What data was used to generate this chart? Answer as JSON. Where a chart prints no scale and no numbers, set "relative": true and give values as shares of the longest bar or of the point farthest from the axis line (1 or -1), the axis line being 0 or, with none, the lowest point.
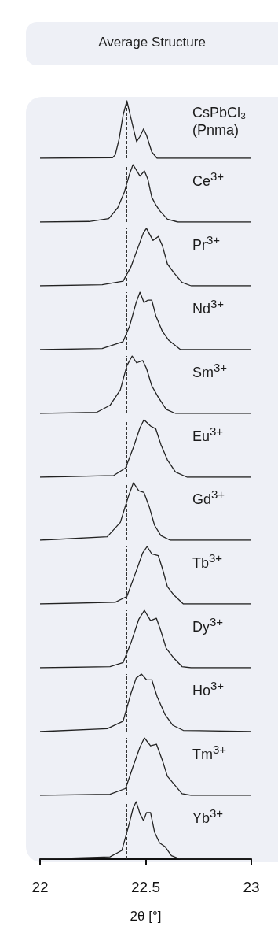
{
  "chart_data": [
    {
      "type": "line",
      "relative": true,
      "title": "Average Structure",
      "xlim": [
        22,
        23
      ],
      "tick_labels": false,
      "marker": "none",
      "ref_lines": [
        {
          "axis": "x",
          "value": 22.41,
          "line_style": "dashed",
          "color": "#333333"
        }
      ],
      "x": [
        22.0,
        22.343,
        22.356,
        22.374,
        22.393,
        22.411,
        22.43,
        22.457,
        22.473,
        22.49,
        22.504,
        22.529,
        22.554,
        23.0
      ],
      "series": [
        {
          "name": "CsPbCl₃ (Pnma)",
          "color": "#222222",
          "values": [
            0,
            0.01,
            0.06,
            0.33,
            0.75,
            1,
            0.7,
            0.29,
            0.38,
            0.51,
            0.4,
            0.11,
            0,
            0
          ]
        }
      ]
    },
    {
      "type": "line",
      "relative": true,
      "xlim": [
        22,
        23
      ],
      "tick_labels": false,
      "marker": "none",
      "ref_lines": [
        {
          "axis": "x",
          "value": 22.41,
          "line_style": "dashed",
          "color": "#333333"
        }
      ],
      "x": [
        22.0,
        22.232,
        22.325,
        22.368,
        22.399,
        22.424,
        22.44,
        22.455,
        22.473,
        22.494,
        22.51,
        22.529,
        22.548,
        22.566,
        22.603,
        22.653,
        23.0
      ],
      "series": [
        {
          "name": "Ce$^{3+}$",
          "color": "#222222",
          "values": [
            0,
            0.01,
            0.06,
            0.25,
            0.52,
            0.84,
            1,
            0.91,
            0.8,
            0.89,
            0.75,
            0.43,
            0.3,
            0.2,
            0.05,
            0,
            0
          ]
        }
      ]
    },
    {
      "type": "line",
      "relative": true,
      "xlim": [
        22,
        23
      ],
      "tick_labels": false,
      "marker": "none",
      "ref_lines": [
        {
          "axis": "x",
          "value": 22.41,
          "line_style": "dashed",
          "color": "#333333"
        }
      ],
      "x": [
        22.0,
        22.294,
        22.393,
        22.43,
        22.467,
        22.49,
        22.504,
        22.517,
        22.535,
        22.56,
        22.579,
        22.603,
        22.635,
        22.672,
        22.715,
        23.0
      ],
      "series": [
        {
          "name": "Pr$^{3+}$",
          "color": "#222222",
          "values": [
            0,
            0.02,
            0.08,
            0.33,
            0.7,
            0.93,
            1,
            0.91,
            0.79,
            0.86,
            0.7,
            0.38,
            0.22,
            0.06,
            0,
            0
          ]
        }
      ]
    },
    {
      "type": "line",
      "relative": true,
      "xlim": [
        22,
        23
      ],
      "tick_labels": false,
      "marker": "none",
      "ref_lines": [
        {
          "axis": "x",
          "value": 22.41,
          "line_style": "dashed",
          "color": "#333333"
        }
      ],
      "x": [
        22.0,
        22.294,
        22.393,
        22.424,
        22.455,
        22.473,
        22.492,
        22.51,
        22.529,
        22.548,
        22.579,
        22.61,
        22.665,
        23.0
      ],
      "series": [
        {
          "name": "Nd$^{3+}$",
          "color": "#222222",
          "values": [
            0,
            0.02,
            0.14,
            0.41,
            0.82,
            1,
            0.82,
            0.86,
            0.86,
            0.59,
            0.32,
            0.16,
            0,
            0
          ]
        }
      ]
    },
    {
      "type": "line",
      "relative": true,
      "xlim": [
        22,
        23
      ],
      "tick_labels": false,
      "marker": "none",
      "ref_lines": [
        {
          "axis": "x",
          "value": 22.41,
          "line_style": "dashed",
          "color": "#333333"
        }
      ],
      "x": [
        22.0,
        22.269,
        22.331,
        22.38,
        22.411,
        22.436,
        22.457,
        22.486,
        22.504,
        22.529,
        22.56,
        22.597,
        22.641,
        23.0
      ],
      "series": [
        {
          "name": "Sm$^{3+}$",
          "color": "#222222",
          "values": [
            0,
            0.02,
            0.14,
            0.41,
            0.83,
            1,
            0.88,
            0.92,
            0.78,
            0.48,
            0.28,
            0.07,
            0,
            0
          ]
        }
      ]
    },
    {
      "type": "line",
      "relative": true,
      "xlim": [
        22,
        23
      ],
      "tick_labels": false,
      "marker": "none",
      "ref_lines": [
        {
          "axis": "x",
          "value": 22.41,
          "line_style": "dashed",
          "color": "#333333"
        }
      ],
      "x": [
        22.0,
        22.349,
        22.405,
        22.442,
        22.473,
        22.492,
        22.523,
        22.548,
        22.572,
        22.603,
        22.641,
        22.696,
        23.0
      ],
      "series": [
        {
          "name": "Eu$^{3+}$",
          "color": "#222222",
          "values": [
            0,
            0.03,
            0.16,
            0.52,
            0.86,
            1,
            0.89,
            0.84,
            0.57,
            0.3,
            0.09,
            0,
            0
          ]
        }
      ]
    },
    {
      "type": "line",
      "relative": true,
      "xlim": [
        22,
        23
      ],
      "tick_labels": false,
      "marker": "none",
      "ref_lines": [
        {
          "axis": "x",
          "value": 22.41,
          "line_style": "dashed",
          "color": "#333333"
        }
      ],
      "x": [
        22.0,
        22.318,
        22.38,
        22.418,
        22.442,
        22.467,
        22.492,
        22.517,
        22.542,
        22.572,
        22.616,
        23.0
      ],
      "series": [
        {
          "name": "Gd$^{3+}$",
          "color": "#222222",
          "values": [
            0,
            0.06,
            0.31,
            0.76,
            1,
            0.86,
            0.83,
            0.58,
            0.26,
            0.08,
            0,
            0
          ]
        }
      ]
    },
    {
      "type": "line",
      "relative": true,
      "xlim": [
        22,
        23
      ],
      "tick_labels": false,
      "marker": "none",
      "ref_lines": [
        {
          "axis": "x",
          "value": 22.41,
          "line_style": "dashed",
          "color": "#333333"
        }
      ],
      "x": [
        22.0,
        22.356,
        22.411,
        22.455,
        22.486,
        22.507,
        22.529,
        22.56,
        22.579,
        22.603,
        22.635,
        22.678,
        23.0
      ],
      "series": [
        {
          "name": "Tb$^{3+}$",
          "color": "#222222",
          "values": [
            0,
            0.03,
            0.13,
            0.57,
            0.89,
            1,
            0.87,
            0.84,
            0.62,
            0.3,
            0.15,
            0,
            0
          ]
        }
      ]
    },
    {
      "type": "line",
      "relative": true,
      "xlim": [
        22,
        23
      ],
      "tick_labels": false,
      "marker": "none",
      "ref_lines": [
        {
          "axis": "x",
          "value": 22.41,
          "line_style": "dashed",
          "color": "#333333"
        }
      ],
      "x": [
        22.0,
        22.331,
        22.393,
        22.43,
        22.467,
        22.494,
        22.523,
        22.551,
        22.572,
        22.597,
        22.635,
        22.672,
        22.715,
        23.0
      ],
      "series": [
        {
          "name": "Dy$^{3+}$",
          "color": "#222222",
          "values": [
            0,
            0.02,
            0.09,
            0.43,
            0.84,
            1,
            0.82,
            0.86,
            0.64,
            0.34,
            0.16,
            0.02,
            0,
            0
          ]
        }
      ]
    },
    {
      "type": "line",
      "relative": true,
      "xlim": [
        22,
        23
      ],
      "tick_labels": false,
      "marker": "none",
      "ref_lines": [
        {
          "axis": "x",
          "value": 22.41,
          "line_style": "dashed",
          "color": "#333333"
        }
      ],
      "x": [
        22.0,
        22.318,
        22.393,
        22.43,
        22.455,
        22.48,
        22.504,
        22.529,
        22.554,
        22.591,
        22.628,
        22.678,
        23.0
      ],
      "series": [
        {
          "name": "Ho$^{3+}$",
          "color": "#222222",
          "values": [
            0,
            0.05,
            0.18,
            0.66,
            0.93,
            1,
            0.9,
            0.9,
            0.61,
            0.3,
            0.11,
            0.02,
            0
          ]
        }
      ]
    },
    {
      "type": "line",
      "relative": true,
      "xlim": [
        22,
        23
      ],
      "tick_labels": false,
      "marker": "none",
      "ref_lines": [
        {
          "axis": "x",
          "value": 22.41,
          "line_style": "dashed",
          "color": "#333333"
        }
      ],
      "x": [
        22.0,
        22.331,
        22.405,
        22.442,
        22.473,
        22.494,
        22.523,
        22.551,
        22.579,
        22.603,
        22.635,
        22.672,
        22.715,
        23.0
      ],
      "series": [
        {
          "name": "Tm$^{3+}$",
          "color": "#222222",
          "values": [
            0,
            0.02,
            0.12,
            0.52,
            0.84,
            1,
            0.86,
            0.89,
            0.61,
            0.33,
            0.19,
            0.03,
            0,
            0
          ]
        }
      ]
    },
    {
      "type": "line",
      "relative": true,
      "xlim": [
        22,
        23
      ],
      "xticks": [
        22,
        22.5,
        23
      ],
      "xlabel": "2θ [°]",
      "tick_labels": "x",
      "marker": "none",
      "ref_lines": [
        {
          "axis": "x",
          "value": 22.41,
          "line_style": "dashed",
          "color": "#333333"
        }
      ],
      "x": [
        22.0,
        22.331,
        22.387,
        22.418,
        22.44,
        22.455,
        22.473,
        22.49,
        22.504,
        22.523,
        22.542,
        22.566,
        22.591,
        22.622,
        22.665,
        23.0
      ],
      "series": [
        {
          "name": "Yb$^{3+}$",
          "color": "#222222",
          "values": [
            0,
            0.04,
            0.15,
            0.56,
            0.88,
            1,
            0.79,
            0.67,
            0.81,
            0.81,
            0.47,
            0.28,
            0.22,
            0.06,
            0,
            0
          ]
        }
      ]
    }
  ]
}
